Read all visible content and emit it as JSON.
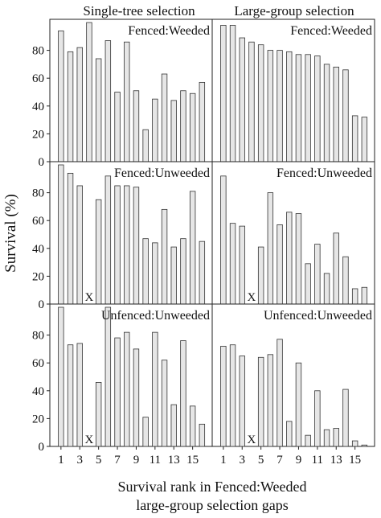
{
  "figure": {
    "ylabel": "Survival (%)",
    "xlabel_line1": "Survival rank in Fenced:Weeded",
    "xlabel_line2": "large-group selection gaps",
    "column_titles": [
      "Single-tree selection",
      "Large-group selection"
    ]
  },
  "chart_data": [
    {
      "type": "bar",
      "row": 0,
      "col": 0,
      "title": "Single-tree selection",
      "label": "Fenced:Weeded",
      "x": [
        1,
        2,
        3,
        4,
        5,
        6,
        7,
        8,
        9,
        10,
        11,
        12,
        13,
        14,
        15,
        16
      ],
      "values": [
        94,
        79,
        82,
        100,
        74,
        87,
        50,
        86,
        51,
        23,
        45,
        63,
        44,
        51,
        49,
        57
      ],
      "missing_marker": "",
      "ylim": [
        0,
        100
      ],
      "yticks": [
        0,
        20,
        40,
        60,
        80
      ],
      "xticks": [
        1,
        3,
        5,
        7,
        9,
        11,
        13,
        15
      ]
    },
    {
      "type": "bar",
      "row": 0,
      "col": 1,
      "title": "Large-group selection",
      "label": "Fenced:Weeded",
      "x": [
        1,
        2,
        3,
        4,
        5,
        6,
        7,
        8,
        9,
        10,
        11,
        12,
        13,
        14,
        15,
        16
      ],
      "values": [
        98,
        98,
        89,
        86,
        84,
        80,
        80,
        79,
        77,
        77,
        76,
        70,
        68,
        66,
        33,
        32
      ],
      "missing_marker": "",
      "ylim": [
        0,
        100
      ],
      "yticks": [
        0,
        20,
        40,
        60,
        80
      ],
      "xticks": [
        1,
        3,
        5,
        7,
        9,
        11,
        13,
        15
      ]
    },
    {
      "type": "bar",
      "row": 1,
      "col": 0,
      "title": "",
      "label": "Fenced:Unweeded",
      "x": [
        1,
        2,
        3,
        4,
        5,
        6,
        7,
        8,
        9,
        10,
        11,
        12,
        13,
        14,
        15,
        16
      ],
      "values": [
        100,
        94,
        85,
        null,
        75,
        92,
        85,
        85,
        84,
        47,
        44,
        68,
        41,
        47,
        81,
        45
      ],
      "missing_marker": "X",
      "ylim": [
        0,
        100
      ],
      "yticks": [
        0,
        20,
        40,
        60,
        80
      ],
      "xticks": [
        1,
        3,
        5,
        7,
        9,
        11,
        13,
        15
      ]
    },
    {
      "type": "bar",
      "row": 1,
      "col": 1,
      "title": "",
      "label": "Fenced:Unweeded",
      "x": [
        1,
        2,
        3,
        4,
        5,
        6,
        7,
        8,
        9,
        10,
        11,
        12,
        13,
        14,
        15,
        16
      ],
      "values": [
        92,
        58,
        56,
        null,
        41,
        80,
        57,
        66,
        65,
        29,
        43,
        22,
        51,
        34,
        11,
        12
      ],
      "missing_marker": "X",
      "ylim": [
        0,
        100
      ],
      "yticks": [
        0,
        20,
        40,
        60,
        80
      ],
      "xticks": [
        1,
        3,
        5,
        7,
        9,
        11,
        13,
        15
      ]
    },
    {
      "type": "bar",
      "row": 2,
      "col": 0,
      "title": "",
      "label": "Unfenced:Unweeded",
      "x": [
        1,
        2,
        3,
        4,
        5,
        6,
        7,
        8,
        9,
        10,
        11,
        12,
        13,
        14,
        15,
        16
      ],
      "values": [
        100,
        73,
        74,
        null,
        46,
        100,
        78,
        82,
        70,
        21,
        82,
        62,
        30,
        76,
        29,
        16
      ],
      "missing_marker": "X",
      "ylim": [
        0,
        100
      ],
      "yticks": [
        0,
        20,
        40,
        60,
        80
      ],
      "xticks": [
        1,
        3,
        5,
        7,
        9,
        11,
        13,
        15
      ]
    },
    {
      "type": "bar",
      "row": 2,
      "col": 1,
      "title": "",
      "label": "Unfenced:Unweeded",
      "x": [
        1,
        2,
        3,
        4,
        5,
        6,
        7,
        8,
        9,
        10,
        11,
        12,
        13,
        14,
        15,
        16
      ],
      "values": [
        72,
        73,
        65,
        null,
        64,
        66,
        77,
        18,
        60,
        8,
        40,
        12,
        13,
        41,
        4,
        1
      ],
      "missing_marker": "X",
      "ylim": [
        0,
        100
      ],
      "yticks": [
        0,
        20,
        40,
        60,
        80
      ],
      "xticks": [
        1,
        3,
        5,
        7,
        9,
        11,
        13,
        15
      ]
    }
  ]
}
